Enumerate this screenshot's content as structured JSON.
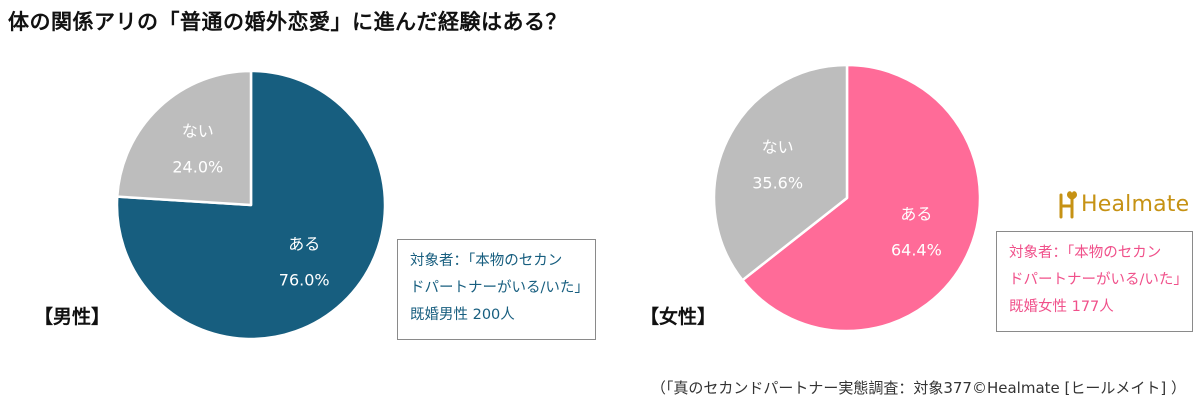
{
  "title": "体の関係アリの「普通の婚外恋愛」に進んだ経験はある？",
  "chart_data": [
    {
      "type": "pie",
      "title": "【男性】",
      "slices": [
        {
          "label": "ある",
          "value": 76.0,
          "value_text": "76.0%",
          "color": "#175e7f"
        },
        {
          "label": "ない",
          "value": 24.0,
          "value_text": "24.0%",
          "color": "#bdbdbd"
        }
      ],
      "info": [
        "対象者：「本物のセカン",
        "ドパートナーがいる/いた」",
        "既婚男性 200人"
      ],
      "info_color": "#175e7f"
    },
    {
      "type": "pie",
      "title": "【女性】",
      "slices": [
        {
          "label": "ある",
          "value": 64.4,
          "value_text": "64.4%",
          "color": "#ff6b98"
        },
        {
          "label": "ない",
          "value": 35.6,
          "value_text": "35.6%",
          "color": "#bdbdbd"
        }
      ],
      "info": [
        "対象者：「本物のセカン",
        "ドパートナーがいる/いた」",
        "既婚女性 177人"
      ],
      "info_color": "#f0508a"
    }
  ],
  "logo": {
    "text": "Healmate",
    "icon": "healmate-logo-icon",
    "color": "#c69214"
  },
  "source": "（「真のセカンドパートナー実態調査：対象377©Healmate [ヒールメイト] ）"
}
